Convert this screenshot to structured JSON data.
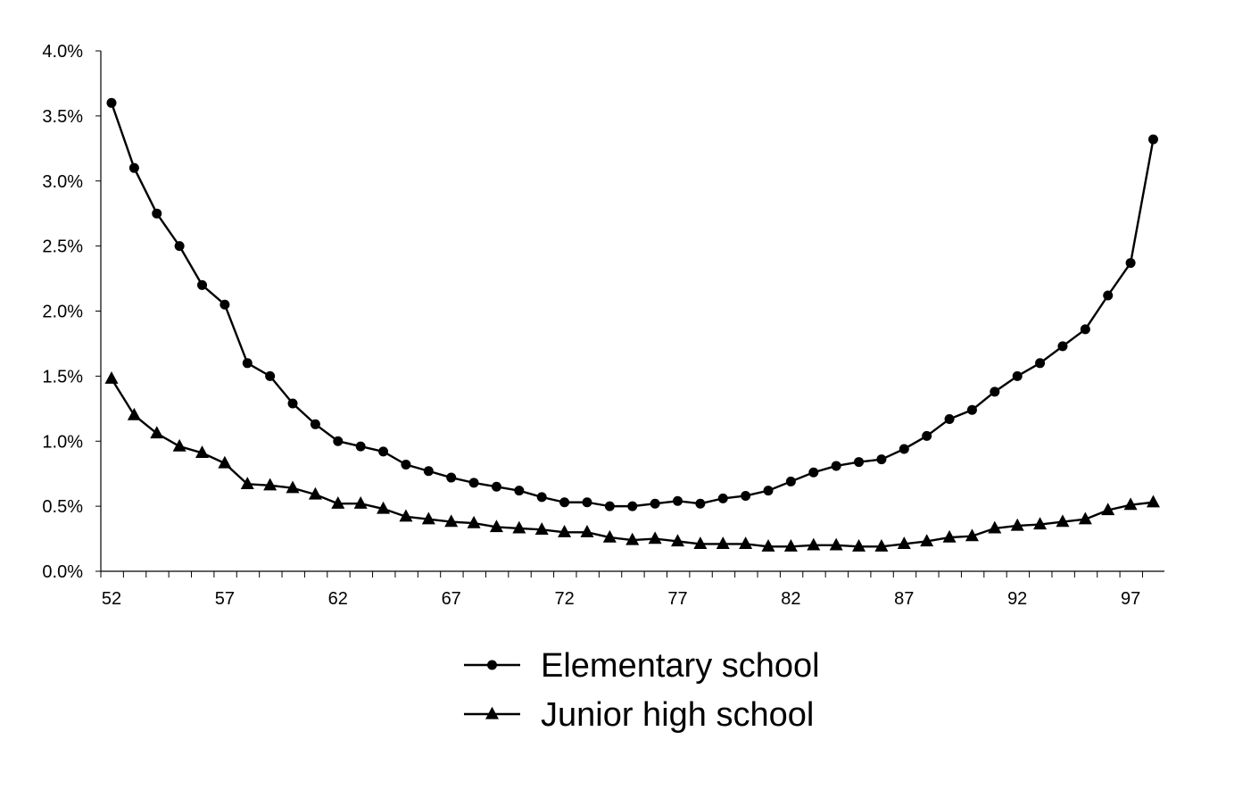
{
  "chart_data": {
    "type": "line",
    "title": "",
    "xlabel": "",
    "ylabel": "",
    "x": [
      52,
      53,
      54,
      55,
      56,
      57,
      58,
      59,
      60,
      61,
      62,
      63,
      64,
      65,
      66,
      67,
      68,
      69,
      70,
      71,
      72,
      73,
      74,
      75,
      76,
      77,
      78,
      79,
      80,
      81,
      82,
      83,
      84,
      85,
      86,
      87,
      88,
      89,
      90,
      91,
      92,
      93,
      94,
      95,
      96,
      97,
      98
    ],
    "x_tick_labels": [
      "52",
      "57",
      "62",
      "67",
      "72",
      "77",
      "82",
      "87",
      "92",
      "97"
    ],
    "x_tick_values": [
      52,
      57,
      62,
      67,
      72,
      77,
      82,
      87,
      92,
      97
    ],
    "ylim": [
      0,
      4.0
    ],
    "y_ticks": [
      0,
      0.5,
      1.0,
      1.5,
      2.0,
      2.5,
      3.0,
      3.5,
      4.0
    ],
    "y_tick_labels": [
      "0.0%",
      "0.5%",
      "1.0%",
      "1.5%",
      "2.0%",
      "2.5%",
      "3.0%",
      "3.5%",
      "4.0%"
    ],
    "grid": false,
    "legend_position": "bottom-center",
    "series": [
      {
        "name": "Elementary school",
        "marker": "circle",
        "color": "#000000",
        "values": [
          3.6,
          3.1,
          2.75,
          2.5,
          2.2,
          2.05,
          1.6,
          1.5,
          1.29,
          1.13,
          1.0,
          0.96,
          0.92,
          0.82,
          0.77,
          0.72,
          0.68,
          0.65,
          0.62,
          0.57,
          0.53,
          0.53,
          0.5,
          0.5,
          0.52,
          0.54,
          0.52,
          0.56,
          0.58,
          0.62,
          0.69,
          0.76,
          0.81,
          0.84,
          0.86,
          0.94,
          1.04,
          1.17,
          1.24,
          1.38,
          1.5,
          1.6,
          1.73,
          1.86,
          2.12,
          2.37,
          3.32
        ]
      },
      {
        "name": "Junior high school",
        "marker": "triangle",
        "color": "#000000",
        "values": [
          1.48,
          1.2,
          1.06,
          0.96,
          0.91,
          0.83,
          0.67,
          0.66,
          0.64,
          0.59,
          0.52,
          0.52,
          0.48,
          0.42,
          0.4,
          0.38,
          0.37,
          0.34,
          0.33,
          0.32,
          0.3,
          0.3,
          0.26,
          0.24,
          0.25,
          0.23,
          0.21,
          0.21,
          0.21,
          0.19,
          0.19,
          0.2,
          0.2,
          0.19,
          0.19,
          0.21,
          0.23,
          0.26,
          0.27,
          0.33,
          0.35,
          0.36,
          0.38,
          0.4,
          0.47,
          0.51,
          0.53
        ]
      }
    ]
  }
}
